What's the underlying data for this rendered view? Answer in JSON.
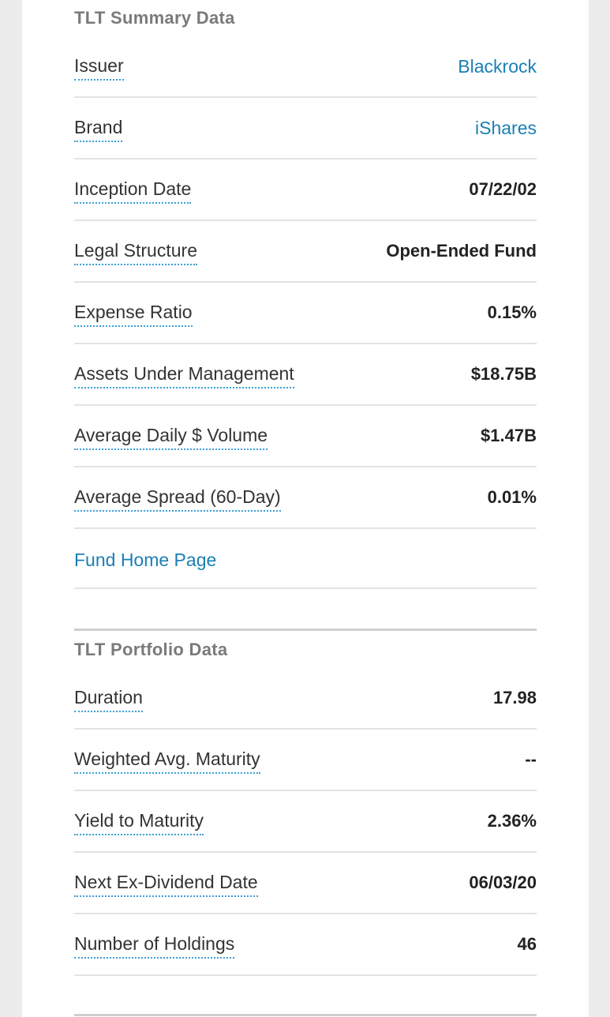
{
  "summary": {
    "title": "TLT Summary Data",
    "rows": [
      {
        "label": "Issuer",
        "value": "Blackrock"
      },
      {
        "label": "Brand",
        "value": "iShares"
      },
      {
        "label": "Inception Date",
        "value": "07/22/02"
      },
      {
        "label": "Legal Structure",
        "value": "Open-Ended Fund"
      },
      {
        "label": "Expense Ratio",
        "value": "0.15%"
      },
      {
        "label": "Assets Under Management",
        "value": "$18.75B"
      },
      {
        "label": "Average Daily $ Volume",
        "value": "$1.47B"
      },
      {
        "label": "Average Spread (60-Day)",
        "value": "0.01%"
      }
    ],
    "fund_home_link": "Fund Home Page"
  },
  "portfolio": {
    "title": "TLT Portfolio Data",
    "rows": [
      {
        "label": "Duration",
        "value": "17.98"
      },
      {
        "label": "Weighted Avg. Maturity",
        "value": "--"
      },
      {
        "label": "Yield to Maturity",
        "value": "2.36%"
      },
      {
        "label": "Next Ex-Dividend Date",
        "value": "06/03/20"
      },
      {
        "label": "Number of Holdings",
        "value": "46"
      }
    ]
  },
  "colors": {
    "link": "#1a7fb5",
    "dotted_underline": "#3a9fd9",
    "section_title": "#7a7a7a"
  }
}
